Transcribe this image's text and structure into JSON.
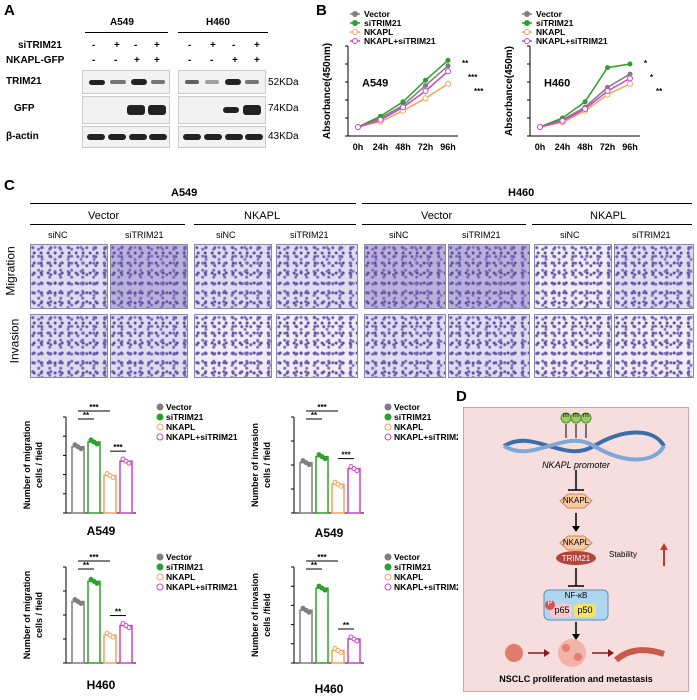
{
  "panels": {
    "a": "A",
    "b": "B",
    "c": "C",
    "d": "D"
  },
  "blot": {
    "cell_lines": [
      "A549",
      "H460"
    ],
    "row_labels": [
      "siTRIM21",
      "NKAPL-GFP"
    ],
    "signs_a549": [
      [
        "-",
        "+",
        "-",
        "+"
      ],
      [
        "-",
        "-",
        "+",
        "+"
      ]
    ],
    "signs_h460": [
      [
        "-",
        "+",
        "-",
        "+"
      ],
      [
        "-",
        "-",
        "+",
        "+"
      ]
    ],
    "proteins": [
      "TRIM21",
      "GFP",
      "β-actin"
    ],
    "sizes": [
      "52KDa",
      "74KDa",
      "43KDa"
    ]
  },
  "growth": {
    "legend": [
      "Vector",
      "siTRIM21",
      "NKAPL",
      "NKAPL+siTRIM21"
    ],
    "colors": [
      "#7f7f7f",
      "#2ca02c",
      "#f5a35a",
      "#cc44cc"
    ],
    "ylabel": "Absorbance(450nm)",
    "sig_a549": [
      "**",
      "***",
      "***"
    ],
    "sig_h460": [
      "*",
      "*",
      "**"
    ]
  },
  "transwell": {
    "groups": [
      "Vector",
      "NKAPL",
      "Vector",
      "NKAPL"
    ],
    "sub": [
      "siNC",
      "siTRIM21",
      "siNC",
      "siTRIM21",
      "siNC",
      "siTRIM21",
      "siNC",
      "siTRIM21"
    ],
    "rows": [
      "Migration",
      "Invasion"
    ]
  },
  "bars": {
    "legend": [
      "Vector",
      "siTRIM21",
      "NKAPL",
      "NKAPL+siTRIM21"
    ],
    "mig_ylabel_1": "Number of migration",
    "mig_ylabel_2": "cells / field",
    "inv_ylabel_1": "Number of invasion",
    "inv_ylabel_2": "cells / field",
    "inv_ylabel_2b": "cells /field",
    "sig": {
      "a549_mig": [
        "***",
        "**",
        "***"
      ],
      "a549_inv": [
        "***",
        "**",
        "***"
      ],
      "h460_mig": [
        "***",
        "**",
        "**"
      ],
      "h460_inv": [
        "***",
        "**",
        "**"
      ]
    }
  },
  "chart_data": [
    {
      "type": "line",
      "title": "A549",
      "xlabel": "",
      "ylabel": "Absorbance(450nm)",
      "categories": [
        "0h",
        "24h",
        "48h",
        "72h",
        "96h"
      ],
      "series": [
        {
          "name": "Vector",
          "values": [
            0.25,
            0.5,
            0.85,
            1.4,
            1.95
          ]
        },
        {
          "name": "siTRIM21",
          "values": [
            0.25,
            0.55,
            0.95,
            1.55,
            2.1
          ]
        },
        {
          "name": "NKAPL",
          "values": [
            0.25,
            0.4,
            0.7,
            1.05,
            1.45
          ]
        },
        {
          "name": "NKAPL+siTRIM21",
          "values": [
            0.25,
            0.45,
            0.8,
            1.25,
            1.8
          ]
        }
      ],
      "yticks": [
        "0.0",
        "0.5",
        "1.0",
        "1.5",
        "2.0",
        "2.5"
      ],
      "ylim": [
        0,
        2.5
      ]
    },
    {
      "type": "line",
      "title": "H460",
      "xlabel": "",
      "ylabel": "Absorbance(450m)",
      "categories": [
        "0h",
        "24h",
        "48h",
        "72h",
        "96h"
      ],
      "series": [
        {
          "name": "Vector",
          "values": [
            0.25,
            0.45,
            0.8,
            1.35,
            1.72
          ]
        },
        {
          "name": "siTRIM21",
          "values": [
            0.25,
            0.5,
            0.95,
            1.9,
            2.0
          ]
        },
        {
          "name": "NKAPL",
          "values": [
            0.25,
            0.38,
            0.7,
            1.15,
            1.45
          ]
        },
        {
          "name": "NKAPL+siTRIM21",
          "values": [
            0.25,
            0.42,
            0.75,
            1.25,
            1.6
          ]
        }
      ],
      "yticks": [
        "0.0",
        "0.5",
        "1.0",
        "1.5",
        "2.0",
        "2.5"
      ],
      "ylim": [
        0,
        2.5
      ]
    },
    {
      "type": "bar",
      "title": "A549",
      "categories": [
        "Vector",
        "siTRIM21",
        "NKAPL",
        "NKAPL+siTRIM21"
      ],
      "values": [
        345,
        370,
        195,
        270
      ],
      "ylim": [
        0,
        500
      ],
      "yticks": [
        "0",
        "100",
        "200",
        "300",
        "400",
        "500"
      ],
      "ylabel": "Number of migration cells / field"
    },
    {
      "type": "bar",
      "title": "A549",
      "categories": [
        "Vector",
        "siTRIM21",
        "NKAPL",
        "NKAPL+siTRIM21"
      ],
      "values": [
        210,
        235,
        120,
        185
      ],
      "ylim": [
        0,
        400
      ],
      "yticks": [
        "0",
        "100",
        "200",
        "300",
        "400"
      ],
      "ylabel": "Number of invasion cells / field"
    },
    {
      "type": "bar",
      "title": "H460",
      "categories": [
        "Vector",
        "siTRIM21",
        "NKAPL",
        "NKAPL+siTRIM21"
      ],
      "values": [
        128,
        170,
        58,
        78
      ],
      "ylim": [
        0,
        200
      ],
      "yticks": [
        "0",
        "50",
        "100",
        "150",
        "200"
      ],
      "ylabel": "Number of migration cells / field"
    },
    {
      "type": "bar",
      "title": "H460",
      "categories": [
        "Vector",
        "siTRIM21",
        "NKAPL",
        "NKAPL+siTRIM21"
      ],
      "values": [
        55,
        78,
        13,
        25
      ],
      "ylim": [
        0,
        100
      ],
      "yticks": [
        "0",
        "20",
        "40",
        "60",
        "80",
        "100"
      ],
      "ylabel": "Number of invasion cells /field"
    }
  ],
  "mechanism": {
    "m": "m",
    "promoter": "NKAPL promoter",
    "nkapl": "NKAPL",
    "trim21": "TRIM21",
    "stability": "Stability",
    "nfkb": "NF-κB",
    "p65": "p65",
    "p50": "p50",
    "p": "P",
    "footer": "NSCLC proliferation and metastasis"
  }
}
